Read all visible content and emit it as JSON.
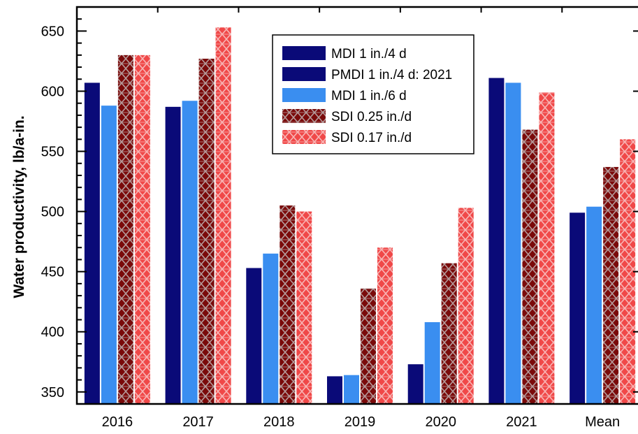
{
  "chart_data": {
    "type": "bar",
    "title": "",
    "xlabel": "",
    "ylabel": "Water productivity, lb/a-in.",
    "ylim": [
      340,
      670
    ],
    "yticks": [
      350,
      400,
      450,
      500,
      550,
      600,
      650
    ],
    "grid": false,
    "legend_position": "top-center",
    "categories": [
      "2016",
      "2017",
      "2018",
      "2019",
      "2020",
      "2021",
      "Mean"
    ],
    "series": [
      {
        "name": "MDI 1 in./4 d",
        "color": "#0a0a78",
        "pattern": "solid",
        "values": [
          607,
          587,
          453,
          363,
          373,
          null,
          499
        ]
      },
      {
        "name": "PMDI 1 in./4 d: 2021",
        "color": "#0a0a78",
        "pattern": "solid",
        "values": [
          null,
          null,
          null,
          null,
          null,
          611,
          null
        ]
      },
      {
        "name": "MDI 1 in./6 d",
        "color": "#3a8ef0",
        "pattern": "solid",
        "values": [
          588,
          592,
          465,
          364,
          408,
          607,
          504
        ]
      },
      {
        "name": "SDI 0.25 in./d",
        "color": "#7a0a0a",
        "pattern": "lattice",
        "values": [
          630,
          627,
          505,
          436,
          457,
          568,
          537
        ]
      },
      {
        "name": "SDI 0.17 in./d",
        "color": "#f04848",
        "pattern": "lattice",
        "values": [
          630,
          653,
          500,
          470,
          503,
          599,
          560
        ]
      }
    ]
  }
}
